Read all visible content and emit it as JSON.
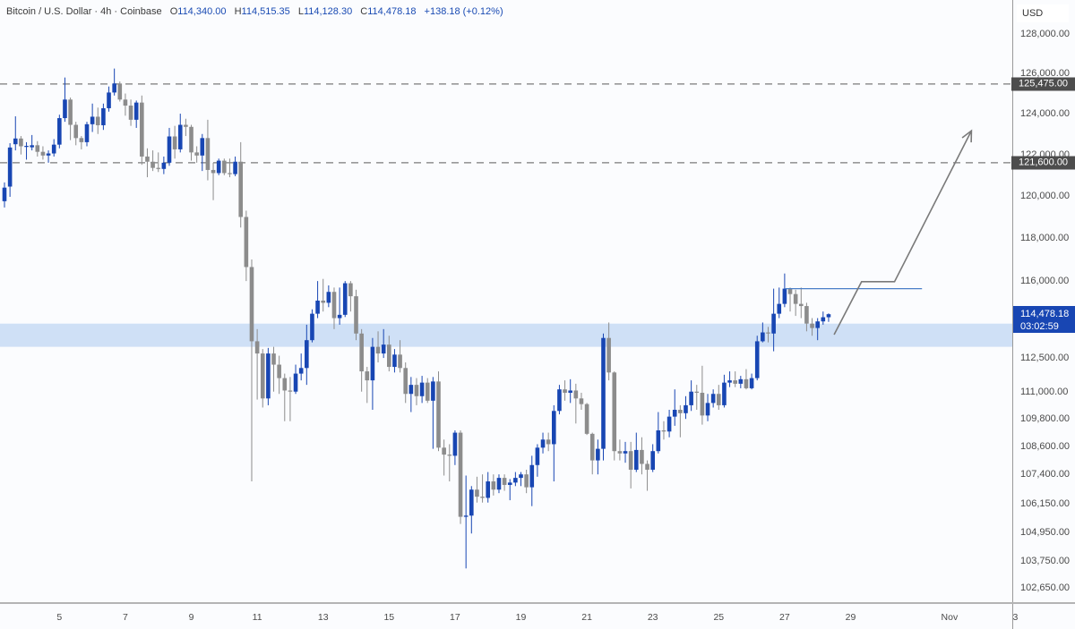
{
  "legend": {
    "symbol": "Bitcoin / U.S. Dollar · 4h · Coinbase",
    "open_key": "O",
    "open": "114,340.00",
    "high_key": "H",
    "high": "114,515.35",
    "low_key": "L",
    "low": "114,128.30",
    "close_key": "C",
    "close": "114,478.18",
    "change": "+138.18 (+0.12%)"
  },
  "price_axis": {
    "currency": "USD",
    "ticks": [
      "128,000.00",
      "126,000.00",
      "124,000.00",
      "122,000.00",
      "120,000.00",
      "118,000.00",
      "116,000.00",
      "112,500.00",
      "111,000.00",
      "109,800.00",
      "108,600.00",
      "107,400.00",
      "106,150.00",
      "104,950.00",
      "103,750.00",
      "102,650.00"
    ],
    "current_price": "114,478.18",
    "countdown": "03:02:59"
  },
  "colors": {
    "up": "#1846b3",
    "down": "#8c8c8c",
    "zone": "#cfe0f6",
    "line": "#4a7fc8",
    "level": "#7a7a7a",
    "arrow": "#7a7a7a"
  },
  "chart_data": {
    "type": "candlestick",
    "interval": "4h",
    "yscale": "log",
    "ylim": [
      101800,
      129750
    ],
    "grid": false,
    "x_ticks": [
      {
        "t": "Oct 5 00:00",
        "label": "5"
      },
      {
        "t": "Oct 7 00:00",
        "label": "7"
      },
      {
        "t": "Oct 9 00:00",
        "label": "9"
      },
      {
        "t": "Oct 11 00:00",
        "label": "11"
      },
      {
        "t": "Oct 13 00:00",
        "label": "13"
      },
      {
        "t": "Oct 15 00:00",
        "label": "15"
      },
      {
        "t": "Oct 17 00:00",
        "label": "17"
      },
      {
        "t": "Oct 19 00:00",
        "label": "19"
      },
      {
        "t": "Oct 21 00:00",
        "label": "21"
      },
      {
        "t": "Oct 23 00:00",
        "label": "23"
      },
      {
        "t": "Oct 25 00:00",
        "label": "25"
      },
      {
        "t": "Oct 27 00:00",
        "label": "27"
      },
      {
        "t": "Oct 29 00:00",
        "label": "29"
      },
      {
        "t": "Nov 1 00:00",
        "label": "Nov"
      },
      {
        "t": "Nov 3 00:00",
        "label": "3"
      }
    ],
    "candles_columns": [
      "time",
      "open",
      "high",
      "low",
      "close"
    ],
    "candles": [
      [
        "Oct 3 08:00",
        119750,
        120650,
        119450,
        120400
      ],
      [
        "Oct 3 12:00",
        120450,
        122550,
        119960,
        122340
      ],
      [
        "Oct 3 16:00",
        122500,
        123870,
        122200,
        122780
      ],
      [
        "Oct 3 20:00",
        122780,
        122900,
        122000,
        122400
      ],
      [
        "Oct 4 00:00",
        122400,
        122600,
        121750,
        122420
      ],
      [
        "Oct 4 04:00",
        122350,
        122950,
        122200,
        122450
      ],
      [
        "Oct 4 08:00",
        122450,
        122650,
        121900,
        122130
      ],
      [
        "Oct 4 12:00",
        122130,
        122400,
        121750,
        121950
      ],
      [
        "Oct 4 16:00",
        121950,
        122200,
        121600,
        122050
      ],
      [
        "Oct 4 20:00",
        122050,
        122750,
        121900,
        122480
      ],
      [
        "Oct 5 00:00",
        122480,
        123950,
        122300,
        123780
      ],
      [
        "Oct 5 04:00",
        123780,
        125800,
        123600,
        124700
      ],
      [
        "Oct 5 08:00",
        124700,
        124800,
        122700,
        123450
      ],
      [
        "Oct 5 12:00",
        123450,
        123600,
        122450,
        122800
      ],
      [
        "Oct 5 16:00",
        122800,
        122900,
        122250,
        122600
      ],
      [
        "Oct 5 20:00",
        122600,
        123600,
        122400,
        123480
      ],
      [
        "Oct 6 00:00",
        123480,
        124500,
        123100,
        123850
      ],
      [
        "Oct 6 04:00",
        123850,
        124300,
        123000,
        123430
      ],
      [
        "Oct 6 08:00",
        123430,
        124500,
        123200,
        124270
      ],
      [
        "Oct 6 12:00",
        124270,
        125350,
        124100,
        125050
      ],
      [
        "Oct 6 16:00",
        125050,
        126250,
        124900,
        125500
      ],
      [
        "Oct 6 20:00",
        125500,
        125600,
        124600,
        124700
      ],
      [
        "Oct 7 00:00",
        124700,
        125000,
        123900,
        124400
      ],
      [
        "Oct 7 04:00",
        124400,
        124700,
        123400,
        123700
      ],
      [
        "Oct 7 08:00",
        123700,
        124650,
        123300,
        124550
      ],
      [
        "Oct 7 12:00",
        124550,
        124900,
        121500,
        121900
      ],
      [
        "Oct 7 16:00",
        121900,
        122300,
        120900,
        121650
      ],
      [
        "Oct 7 20:00",
        121650,
        122200,
        121200,
        121350
      ],
      [
        "Oct 8 00:00",
        121350,
        122100,
        121150,
        121300
      ],
      [
        "Oct 8 04:00",
        121300,
        121900,
        121050,
        121600
      ],
      [
        "Oct 8 08:00",
        121600,
        123300,
        121450,
        122880
      ],
      [
        "Oct 8 12:00",
        122880,
        123400,
        121800,
        122250
      ],
      [
        "Oct 8 16:00",
        122250,
        124000,
        122100,
        123450
      ],
      [
        "Oct 8 20:00",
        123450,
        123750,
        122900,
        123350
      ],
      [
        "Oct 9 00:00",
        123350,
        123450,
        121700,
        122100
      ],
      [
        "Oct 9 04:00",
        122100,
        122400,
        121600,
        121950
      ],
      [
        "Oct 9 08:00",
        121950,
        123000,
        121200,
        122800
      ],
      [
        "Oct 9 12:00",
        122800,
        123700,
        120750,
        121250
      ],
      [
        "Oct 9 16:00",
        121250,
        121600,
        119800,
        121100
      ],
      [
        "Oct 9 20:00",
        121100,
        121800,
        121000,
        121700
      ],
      [
        "Oct 10 00:00",
        121700,
        121800,
        121000,
        121100
      ],
      [
        "Oct 10 04:00",
        121100,
        121800,
        120900,
        121050
      ],
      [
        "Oct 10 08:00",
        121050,
        121900,
        120950,
        121650
      ],
      [
        "Oct 10 12:00",
        121650,
        122600,
        118500,
        119000
      ],
      [
        "Oct 10 16:00",
        119000,
        119300,
        116000,
        116650
      ],
      [
        "Oct 10 20:00",
        116650,
        117000,
        107100,
        113250
      ],
      [
        "Oct 11 00:00",
        113250,
        113800,
        110650,
        112700
      ],
      [
        "Oct 11 04:00",
        112700,
        112900,
        110300,
        110700
      ],
      [
        "Oct 11 08:00",
        110700,
        112950,
        110400,
        112700
      ],
      [
        "Oct 11 12:00",
        112700,
        113000,
        111000,
        112200
      ],
      [
        "Oct 11 16:00",
        112200,
        112600,
        110900,
        111600
      ],
      [
        "Oct 11 20:00",
        111600,
        111800,
        109700,
        111050
      ],
      [
        "Oct 12 00:00",
        111050,
        111650,
        109700,
        111000
      ],
      [
        "Oct 12 04:00",
        111000,
        112200,
        110900,
        111800
      ],
      [
        "Oct 12 08:00",
        111800,
        112700,
        111500,
        112050
      ],
      [
        "Oct 12 12:00",
        112050,
        114000,
        111300,
        113300
      ],
      [
        "Oct 12 16:00",
        113300,
        114700,
        113200,
        114500
      ],
      [
        "Oct 12 20:00",
        114500,
        116000,
        114300,
        115100
      ],
      [
        "Oct 13 00:00",
        115100,
        116100,
        114600,
        115000
      ],
      [
        "Oct 13 04:00",
        115000,
        115800,
        114800,
        115500
      ],
      [
        "Oct 13 08:00",
        115500,
        115700,
        113800,
        114300
      ],
      [
        "Oct 13 12:00",
        114300,
        115700,
        114000,
        114450
      ],
      [
        "Oct 13 16:00",
        114450,
        116000,
        114350,
        115900
      ],
      [
        "Oct 13 20:00",
        115900,
        116000,
        114600,
        115300
      ],
      [
        "Oct 14 00:00",
        115300,
        115600,
        113300,
        113600
      ],
      [
        "Oct 14 04:00",
        113600,
        113800,
        111000,
        111900
      ],
      [
        "Oct 14 08:00",
        111900,
        112100,
        110500,
        111500
      ],
      [
        "Oct 14 12:00",
        111500,
        113400,
        110200,
        113000
      ],
      [
        "Oct 14 16:00",
        113000,
        113700,
        112300,
        112700
      ],
      [
        "Oct 14 20:00",
        112700,
        113800,
        112500,
        113100
      ],
      [
        "Oct 15 00:00",
        113100,
        113500,
        111900,
        112100
      ],
      [
        "Oct 15 04:00",
        112100,
        112900,
        111850,
        112650
      ],
      [
        "Oct 15 08:00",
        112650,
        113300,
        111850,
        112050
      ],
      [
        "Oct 15 12:00",
        112050,
        112300,
        110500,
        110900
      ],
      [
        "Oct 15 16:00",
        110900,
        111650,
        110100,
        111300
      ],
      [
        "Oct 15 20:00",
        111300,
        111600,
        110400,
        110800
      ],
      [
        "Oct 16 00:00",
        110800,
        111700,
        110500,
        111400
      ],
      [
        "Oct 16 04:00",
        111400,
        111600,
        110500,
        110600
      ],
      [
        "Oct 16 08:00",
        110600,
        111650,
        108500,
        111450
      ],
      [
        "Oct 16 12:00",
        111450,
        111900,
        108400,
        108550
      ],
      [
        "Oct 16 16:00",
        108550,
        108900,
        107350,
        108250
      ],
      [
        "Oct 16 20:00",
        108250,
        108700,
        107100,
        108200
      ],
      [
        "Oct 17 00:00",
        108200,
        109300,
        107800,
        109200
      ],
      [
        "Oct 17 04:00",
        109200,
        109300,
        105300,
        105600
      ],
      [
        "Oct 17 08:00",
        105600,
        107350,
        103450,
        105650
      ],
      [
        "Oct 17 12:00",
        105650,
        106900,
        104900,
        106750
      ],
      [
        "Oct 17 16:00",
        106750,
        107300,
        106200,
        106450
      ],
      [
        "Oct 17 20:00",
        106450,
        107400,
        106200,
        106400
      ],
      [
        "Oct 18 00:00",
        106400,
        107500,
        106200,
        107100
      ],
      [
        "Oct 18 04:00",
        107100,
        107400,
        106500,
        106750
      ],
      [
        "Oct 18 08:00",
        106750,
        107400,
        106600,
        107250
      ],
      [
        "Oct 18 12:00",
        107250,
        107400,
        106700,
        106950
      ],
      [
        "Oct 18 16:00",
        106950,
        107200,
        106300,
        107050
      ],
      [
        "Oct 18 20:00",
        107050,
        107500,
        106900,
        107250
      ],
      [
        "Oct 19 00:00",
        107250,
        107500,
        106900,
        107400
      ],
      [
        "Oct 19 04:00",
        107400,
        107600,
        106600,
        106850
      ],
      [
        "Oct 19 08:00",
        106850,
        108200,
        106050,
        107800
      ],
      [
        "Oct 19 12:00",
        107800,
        108700,
        107300,
        108550
      ],
      [
        "Oct 19 16:00",
        108550,
        109200,
        108300,
        108900
      ],
      [
        "Oct 19 20:00",
        108900,
        109200,
        108400,
        108700
      ],
      [
        "Oct 20 00:00",
        108700,
        110400,
        107100,
        110150
      ],
      [
        "Oct 20 04:00",
        110150,
        111300,
        110000,
        111100
      ],
      [
        "Oct 20 08:00",
        111100,
        111500,
        110600,
        110950
      ],
      [
        "Oct 20 12:00",
        110950,
        111550,
        110500,
        111050
      ],
      [
        "Oct 20 16:00",
        111050,
        111350,
        109600,
        110700
      ],
      [
        "Oct 20 20:00",
        110700,
        110950,
        110200,
        110450
      ],
      [
        "Oct 21 00:00",
        110450,
        110500,
        109100,
        109150
      ],
      [
        "Oct 21 04:00",
        109150,
        109200,
        107400,
        108000
      ],
      [
        "Oct 21 08:00",
        108000,
        108900,
        107400,
        108500
      ],
      [
        "Oct 21 12:00",
        108500,
        113600,
        108000,
        113400
      ],
      [
        "Oct 21 16:00",
        113400,
        114100,
        111500,
        111850
      ],
      [
        "Oct 21 20:00",
        111850,
        111900,
        108000,
        108400
      ],
      [
        "Oct 22 00:00",
        108400,
        108900,
        108000,
        108300
      ],
      [
        "Oct 22 04:00",
        108300,
        108800,
        107900,
        108400
      ],
      [
        "Oct 22 08:00",
        108400,
        108800,
        106800,
        107600
      ],
      [
        "Oct 22 12:00",
        107600,
        109200,
        107500,
        108450
      ],
      [
        "Oct 22 16:00",
        108450,
        109000,
        107400,
        107850
      ],
      [
        "Oct 22 20:00",
        107850,
        108000,
        106700,
        107600
      ],
      [
        "Oct 23 00:00",
        107600,
        108700,
        107500,
        108400
      ],
      [
        "Oct 23 04:00",
        108400,
        110100,
        108300,
        109300
      ],
      [
        "Oct 23 08:00",
        109300,
        109700,
        108900,
        109250
      ],
      [
        "Oct 23 12:00",
        109250,
        110200,
        109000,
        109900
      ],
      [
        "Oct 23 16:00",
        109900,
        111100,
        109500,
        110200
      ],
      [
        "Oct 23 20:00",
        110200,
        110400,
        109000,
        110050
      ],
      [
        "Oct 24 00:00",
        110050,
        110800,
        109800,
        110400
      ],
      [
        "Oct 24 04:00",
        110400,
        111500,
        110150,
        111000
      ],
      [
        "Oct 24 08:00",
        111000,
        111300,
        110200,
        110950
      ],
      [
        "Oct 24 12:00",
        110950,
        112150,
        109550,
        109950
      ],
      [
        "Oct 24 16:00",
        109950,
        110900,
        109700,
        110500
      ],
      [
        "Oct 24 20:00",
        110500,
        111100,
        110300,
        110900
      ],
      [
        "Oct 25 00:00",
        110900,
        111300,
        110200,
        110400
      ],
      [
        "Oct 25 04:00",
        110400,
        111750,
        110300,
        111400
      ],
      [
        "Oct 25 08:00",
        111400,
        111900,
        111200,
        111500
      ],
      [
        "Oct 25 12:00",
        111500,
        111900,
        111200,
        111350
      ],
      [
        "Oct 25 16:00",
        111350,
        111700,
        111150,
        111550
      ],
      [
        "Oct 25 20:00",
        111550,
        112000,
        111100,
        111150
      ],
      [
        "Oct 26 00:00",
        111150,
        111800,
        111100,
        111600
      ],
      [
        "Oct 26 04:00",
        111600,
        113500,
        111500,
        113250
      ],
      [
        "Oct 26 08:00",
        113250,
        114100,
        113200,
        113650
      ],
      [
        "Oct 26 12:00",
        113650,
        113900,
        113200,
        113600
      ],
      [
        "Oct 26 16:00",
        113600,
        115650,
        112800,
        114500
      ],
      [
        "Oct 26 20:00",
        114500,
        115700,
        114300,
        114950
      ],
      [
        "Oct 27 00:00",
        114950,
        116350,
        114800,
        115650
      ],
      [
        "Oct 27 04:00",
        115650,
        115700,
        114600,
        115400
      ],
      [
        "Oct 27 08:00",
        115400,
        115600,
        114400,
        114950
      ],
      [
        "Oct 27 12:00",
        114950,
        115700,
        114300,
        114850
      ],
      [
        "Oct 27 16:00",
        114850,
        115000,
        113700,
        114050
      ],
      [
        "Oct 27 20:00",
        114050,
        114300,
        113500,
        113850
      ],
      [
        "Oct 28 00:00",
        113850,
        114300,
        113300,
        114150
      ],
      [
        "Oct 28 04:00",
        114150,
        114600,
        114000,
        114340
      ],
      [
        "Oct 28 08:00",
        114340,
        114515.35,
        114128.3,
        114478.18
      ]
    ],
    "levels": [
      {
        "price": 125475,
        "label": "125,475.00",
        "style": "dashed"
      },
      {
        "price": 121600,
        "label": "121,600.00",
        "style": "dashed"
      }
    ],
    "zone": {
      "from": 113000,
      "to": 114050
    },
    "trend_line": {
      "price": 115650,
      "from": "Oct 27 00:00",
      "to": "Oct 31 04:00"
    },
    "arrow_path": [
      {
        "t": "Oct 28 12:00",
        "price": 113550
      },
      {
        "t": "Oct 29 08:00",
        "price": 115970
      },
      {
        "t": "Oct 30 08:00",
        "price": 115970
      },
      {
        "t": "Nov 1 16:00",
        "price": 123160
      }
    ]
  }
}
